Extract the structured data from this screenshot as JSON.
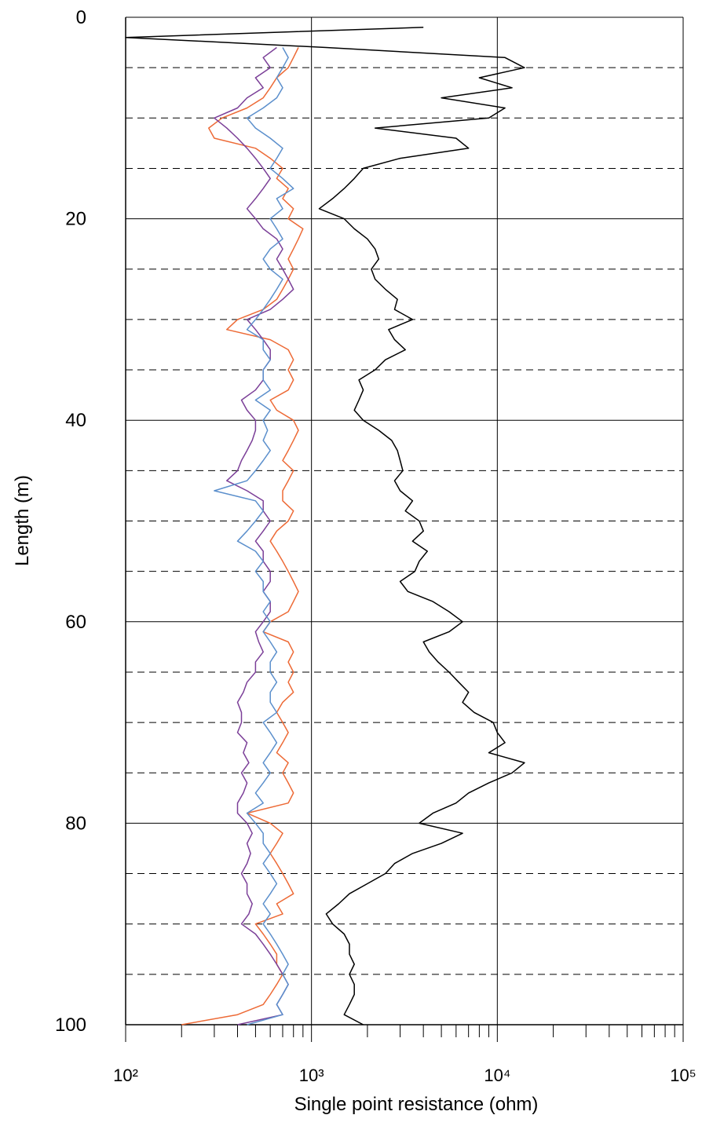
{
  "chart_data": {
    "type": "line",
    "xlabel": "Single point resistance (ohm)",
    "ylabel": "Length (m)",
    "xscale": "log",
    "yinvert": true,
    "grid": true,
    "xlim": [
      100,
      100000
    ],
    "ylim": [
      0,
      100
    ],
    "xticks": [
      {
        "value": 100,
        "label": "10²"
      },
      {
        "value": 1000,
        "label": "10³"
      },
      {
        "value": 10000,
        "label": "10⁴"
      },
      {
        "value": 100000,
        "label": "10⁵"
      }
    ],
    "xminor_ticks": [
      200,
      300,
      400,
      500,
      600,
      700,
      800,
      900,
      2000,
      3000,
      4000,
      5000,
      6000,
      7000,
      8000,
      9000,
      20000,
      30000,
      40000,
      50000,
      60000,
      70000,
      80000,
      90000
    ],
    "yticks": [
      0,
      20,
      40,
      60,
      80,
      100
    ],
    "yminor_grid": [
      5,
      10,
      15,
      25,
      30,
      35,
      45,
      50,
      55,
      65,
      70,
      75,
      85,
      90,
      95
    ],
    "y": [
      1,
      2,
      3,
      4,
      5,
      6,
      7,
      8,
      9,
      10,
      11,
      12,
      13,
      14,
      15,
      16,
      17,
      18,
      19,
      20,
      21,
      22,
      23,
      24,
      25,
      26,
      27,
      28,
      29,
      30,
      31,
      32,
      33,
      34,
      35,
      36,
      37,
      38,
      39,
      40,
      41,
      42,
      43,
      44,
      45,
      46,
      47,
      48,
      49,
      50,
      51,
      52,
      53,
      54,
      55,
      56,
      57,
      58,
      59,
      60,
      61,
      62,
      63,
      64,
      65,
      66,
      67,
      68,
      69,
      70,
      71,
      72,
      73,
      74,
      75,
      76,
      77,
      78,
      79,
      80,
      81,
      82,
      83,
      84,
      85,
      86,
      87,
      88,
      89,
      90,
      91,
      92,
      93,
      94,
      95,
      96,
      97,
      98,
      99,
      100
    ],
    "series": [
      {
        "color": "#000000",
        "values": [
          4000,
          100,
          1200,
          11000,
          14000,
          8000,
          12000,
          5000,
          11000,
          9000,
          2200,
          6000,
          7000,
          3000,
          1900,
          1700,
          1500,
          1300,
          1100,
          1500,
          1700,
          2000,
          2200,
          2300,
          2100,
          2200,
          2500,
          2900,
          2800,
          3500,
          2600,
          2800,
          3200,
          2500,
          2200,
          1800,
          1900,
          1800,
          1700,
          1900,
          2300,
          2700,
          2900,
          3000,
          3100,
          2800,
          3000,
          3500,
          3200,
          3800,
          4000,
          3500,
          4200,
          3800,
          3600,
          3000,
          3300,
          4500,
          5500,
          6500,
          5500,
          4000,
          4300,
          4800,
          5500,
          6200,
          7000,
          6500,
          7500,
          9500,
          10000,
          11000,
          9000,
          14000,
          12000,
          9000,
          7000,
          6000,
          4500,
          3800,
          6500,
          5000,
          3500,
          2800,
          2500,
          2000,
          1600,
          1400,
          1200,
          1300,
          1500,
          1600,
          1600,
          1700,
          1600,
          1700,
          1700,
          1600,
          1500,
          1900
        ]
      },
      {
        "color": "#ed6a36",
        "values": [
          null,
          null,
          850,
          800,
          750,
          650,
          600,
          550,
          450,
          330,
          280,
          300,
          500,
          600,
          700,
          650,
          750,
          700,
          800,
          750,
          900,
          850,
          800,
          750,
          800,
          750,
          700,
          650,
          550,
          400,
          350,
          600,
          750,
          800,
          750,
          800,
          750,
          600,
          650,
          800,
          850,
          800,
          750,
          700,
          800,
          750,
          700,
          700,
          800,
          750,
          650,
          600,
          650,
          700,
          750,
          800,
          850,
          800,
          750,
          600,
          550,
          750,
          800,
          750,
          800,
          750,
          800,
          700,
          650,
          700,
          750,
          700,
          650,
          750,
          700,
          750,
          800,
          750,
          450,
          600,
          700,
          650,
          600,
          650,
          700,
          750,
          800,
          650,
          700,
          500,
          550,
          600,
          650,
          650,
          700,
          650,
          600,
          550,
          400,
          200
        ]
      },
      {
        "color": "#7b3f98",
        "values": [
          null,
          null,
          650,
          550,
          600,
          500,
          550,
          450,
          400,
          300,
          350,
          400,
          450,
          500,
          550,
          600,
          550,
          500,
          450,
          500,
          550,
          650,
          700,
          650,
          700,
          750,
          800,
          700,
          600,
          450,
          500,
          550,
          600,
          600,
          550,
          550,
          500,
          420,
          450,
          500,
          500,
          480,
          450,
          420,
          400,
          350,
          450,
          550,
          550,
          600,
          550,
          500,
          550,
          550,
          600,
          600,
          550,
          600,
          600,
          550,
          500,
          520,
          550,
          500,
          500,
          450,
          430,
          400,
          420,
          420,
          400,
          450,
          430,
          460,
          420,
          450,
          430,
          400,
          400,
          450,
          480,
          450,
          470,
          450,
          420,
          450,
          450,
          480,
          460,
          420,
          500,
          550,
          600,
          650,
          700,
          750,
          700,
          650,
          700,
          400
        ]
      },
      {
        "color": "#5b8fcc",
        "values": [
          null,
          null,
          700,
          750,
          700,
          650,
          700,
          650,
          550,
          450,
          500,
          600,
          700,
          650,
          600,
          700,
          800,
          650,
          700,
          600,
          650,
          700,
          600,
          550,
          600,
          700,
          650,
          600,
          550,
          500,
          450,
          550,
          550,
          600,
          550,
          550,
          600,
          500,
          600,
          550,
          580,
          550,
          600,
          550,
          500,
          450,
          300,
          500,
          550,
          500,
          450,
          400,
          500,
          550,
          500,
          550,
          550,
          600,
          550,
          600,
          550,
          600,
          650,
          600,
          600,
          650,
          600,
          600,
          650,
          550,
          600,
          650,
          600,
          550,
          600,
          550,
          500,
          550,
          450,
          500,
          550,
          550,
          600,
          550,
          600,
          650,
          600,
          550,
          600,
          550,
          600,
          650,
          700,
          750,
          700,
          750,
          700,
          650,
          700,
          450
        ]
      }
    ]
  }
}
